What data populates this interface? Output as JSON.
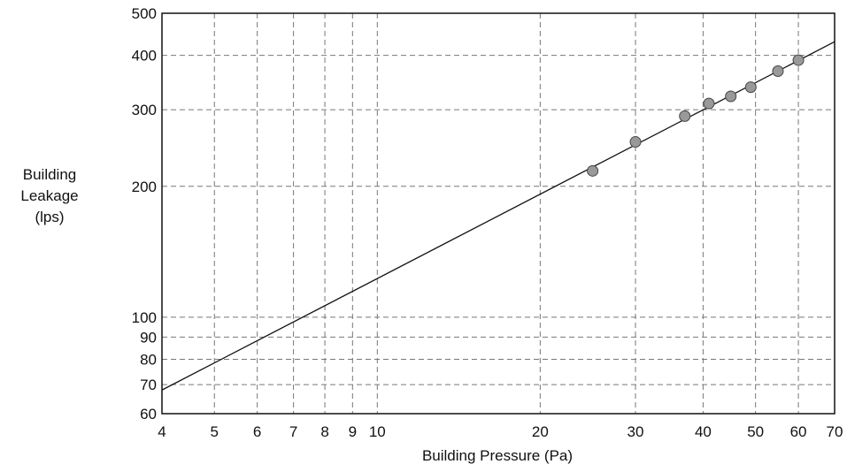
{
  "chart_data": {
    "type": "scatter",
    "xscale": "log",
    "yscale": "log",
    "xlabel": "Building Pressure (Pa)",
    "ylabel_lines": [
      "Building",
      "Leakage",
      "(lps)"
    ],
    "xlim": [
      4,
      70
    ],
    "ylim": [
      60,
      500
    ],
    "x_ticks": [
      4,
      5,
      6,
      7,
      8,
      9,
      10,
      20,
      30,
      40,
      50,
      60,
      70
    ],
    "y_ticks": [
      60,
      70,
      80,
      90,
      100,
      200,
      300,
      400,
      500
    ],
    "grid": "dashed",
    "series": [
      {
        "kind": "points",
        "x": [
          25,
          30,
          37,
          41,
          45,
          49,
          55,
          60
        ],
        "y": [
          217,
          253,
          290,
          310,
          322,
          338,
          368,
          390
        ]
      },
      {
        "kind": "fit-line",
        "x": [
          4,
          70
        ],
        "y": [
          68,
          430
        ]
      }
    ],
    "colors": {
      "points": "#999999",
      "axis": "#111111",
      "grid": "#777777"
    }
  }
}
